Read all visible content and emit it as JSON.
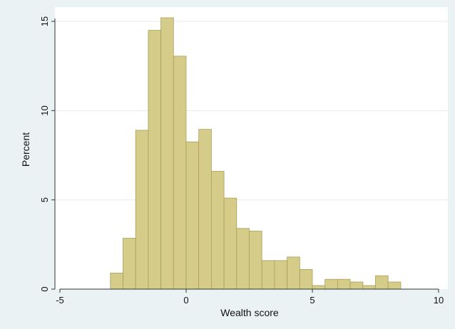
{
  "chart_data": {
    "type": "bar",
    "subtype": "histogram",
    "xlabel": "Wealth score",
    "ylabel": "Percent",
    "xlim": [
      -5,
      10
    ],
    "ylim": [
      0,
      15.6
    ],
    "x_ticks": [
      -5,
      0,
      5,
      10
    ],
    "y_ticks": [
      0,
      5,
      10,
      15
    ],
    "grid": "horizontal",
    "bin_width": 0.5,
    "bins": [
      {
        "x0": -3.0,
        "x1": -2.5,
        "value": 0.9
      },
      {
        "x0": -2.5,
        "x1": -2.0,
        "value": 2.85
      },
      {
        "x0": -2.0,
        "x1": -1.5,
        "value": 8.9
      },
      {
        "x0": -1.5,
        "x1": -1.0,
        "value": 14.5
      },
      {
        "x0": -1.0,
        "x1": -0.5,
        "value": 15.2
      },
      {
        "x0": -0.5,
        "x1": 0.0,
        "value": 13.05
      },
      {
        "x0": 0.0,
        "x1": 0.5,
        "value": 8.25
      },
      {
        "x0": 0.5,
        "x1": 1.0,
        "value": 8.95
      },
      {
        "x0": 1.0,
        "x1": 1.5,
        "value": 6.6
      },
      {
        "x0": 1.5,
        "x1": 2.0,
        "value": 5.1
      },
      {
        "x0": 2.0,
        "x1": 2.5,
        "value": 3.4
      },
      {
        "x0": 2.5,
        "x1": 3.0,
        "value": 3.25
      },
      {
        "x0": 3.0,
        "x1": 3.5,
        "value": 1.6
      },
      {
        "x0": 3.5,
        "x1": 4.0,
        "value": 1.6
      },
      {
        "x0": 4.0,
        "x1": 4.5,
        "value": 1.8
      },
      {
        "x0": 4.5,
        "x1": 5.0,
        "value": 1.1
      },
      {
        "x0": 5.0,
        "x1": 5.5,
        "value": 0.2
      },
      {
        "x0": 5.5,
        "x1": 6.0,
        "value": 0.55
      },
      {
        "x0": 6.0,
        "x1": 6.5,
        "value": 0.55
      },
      {
        "x0": 6.5,
        "x1": 7.0,
        "value": 0.4
      },
      {
        "x0": 7.0,
        "x1": 7.5,
        "value": 0.2
      },
      {
        "x0": 7.5,
        "x1": 8.0,
        "value": 0.75
      },
      {
        "x0": 8.0,
        "x1": 8.5,
        "value": 0.4
      }
    ]
  },
  "colors": {
    "outer_background": "#eaf2f3",
    "plot_background": "#ffffff",
    "bar_fill": "#d5cc8a",
    "bar_stroke": "#a89f58",
    "grid": "#e4ecee",
    "axis": "#333333"
  }
}
